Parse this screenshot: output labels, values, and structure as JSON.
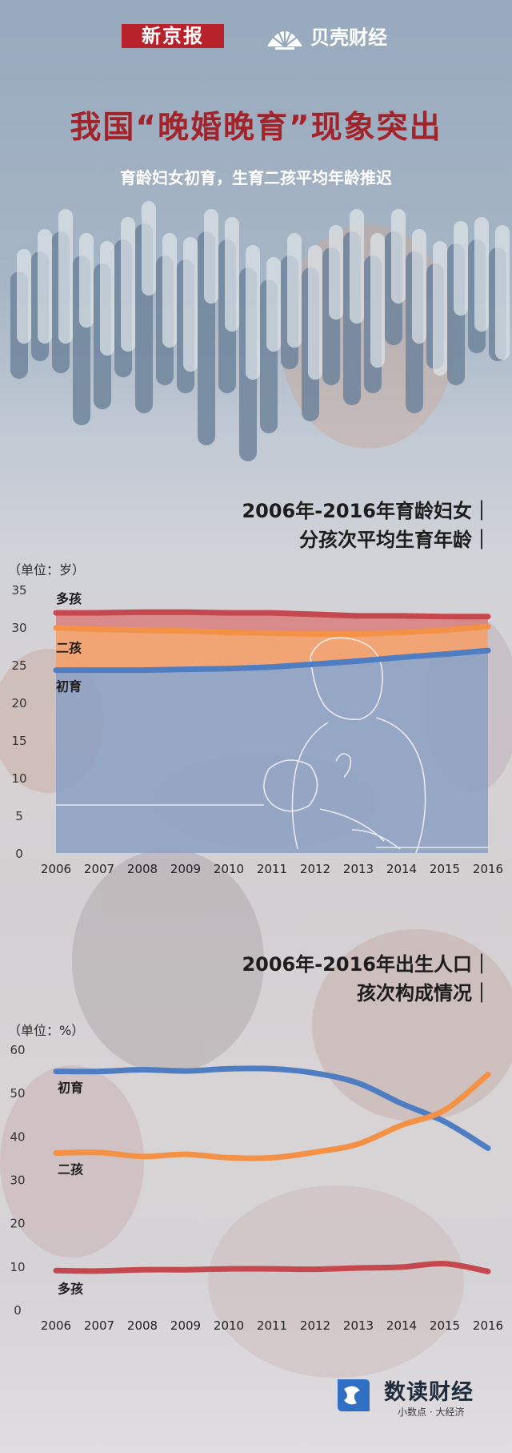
{
  "brand": {
    "xinjingbao": "新京报",
    "beike": "贝壳财经"
  },
  "header": {
    "title": "我国“晚婚晚育”现象突出",
    "subtitle": "育龄妇女初育，生育二孩平均年龄推迟"
  },
  "colors": {
    "first": "#4f7dc1",
    "second": "#f39246",
    "multi": "#c4484e",
    "title_red": "#a3232a"
  },
  "chart_data": [
    {
      "type": "area",
      "title": "2006年-2016年育龄妇女｜分孩次平均生育年龄｜",
      "title_lines": [
        "2006年-2016年育龄妇女｜",
        "分孩次平均生育年龄｜"
      ],
      "unit_label": "（单位：岁）",
      "x": [
        "2006",
        "2007",
        "2008",
        "2009",
        "2010",
        "2011",
        "2012",
        "2013",
        "2014",
        "2015",
        "2016"
      ],
      "y_ticks": [
        "0",
        "5",
        "10",
        "15",
        "20",
        "25",
        "30",
        "35"
      ],
      "ylim": [
        0,
        35
      ],
      "series": [
        {
          "name": "多孩",
          "values": [
            31.9,
            31.9,
            32.0,
            32.0,
            31.9,
            31.9,
            31.7,
            31.5,
            31.5,
            31.4,
            31.4
          ]
        },
        {
          "name": "二孩",
          "values": [
            29.9,
            29.7,
            29.6,
            29.5,
            29.3,
            29.2,
            29.1,
            29.1,
            29.3,
            29.6,
            30.1
          ]
        },
        {
          "name": "初育",
          "values": [
            24.3,
            24.3,
            24.3,
            24.4,
            24.5,
            24.7,
            25.1,
            25.5,
            26.0,
            26.4,
            26.9
          ]
        }
      ],
      "grid": false
    },
    {
      "type": "line",
      "title": "2006年-2016年出生人口｜孩次构成情况｜",
      "title_lines": [
        "2006年-2016年出生人口｜",
        "孩次构成情况｜"
      ],
      "unit_label": "（单位：%）",
      "x": [
        "2006",
        "2007",
        "2008",
        "2009",
        "2010",
        "2011",
        "2012",
        "2013",
        "2014",
        "2015",
        "2016"
      ],
      "y_ticks": [
        "0",
        "10",
        "20",
        "30",
        "40",
        "50",
        "60"
      ],
      "ylim": [
        0,
        60
      ],
      "series": [
        {
          "name": "初育",
          "values": [
            54.9,
            54.9,
            55.3,
            55.0,
            55.5,
            55.5,
            54.5,
            52.2,
            47.5,
            43.3,
            37.2
          ]
        },
        {
          "name": "二孩",
          "values": [
            36.1,
            36.2,
            35.3,
            35.8,
            35.0,
            35.0,
            36.3,
            38.2,
            42.5,
            46.0,
            54.2
          ]
        },
        {
          "name": "多孩",
          "values": [
            9.0,
            8.9,
            9.2,
            9.2,
            9.4,
            9.4,
            9.3,
            9.6,
            9.8,
            10.6,
            8.8
          ]
        }
      ],
      "grid": false
    }
  ],
  "footer": {
    "name": "数读财经",
    "slogan": "小数点 · 大经济"
  }
}
